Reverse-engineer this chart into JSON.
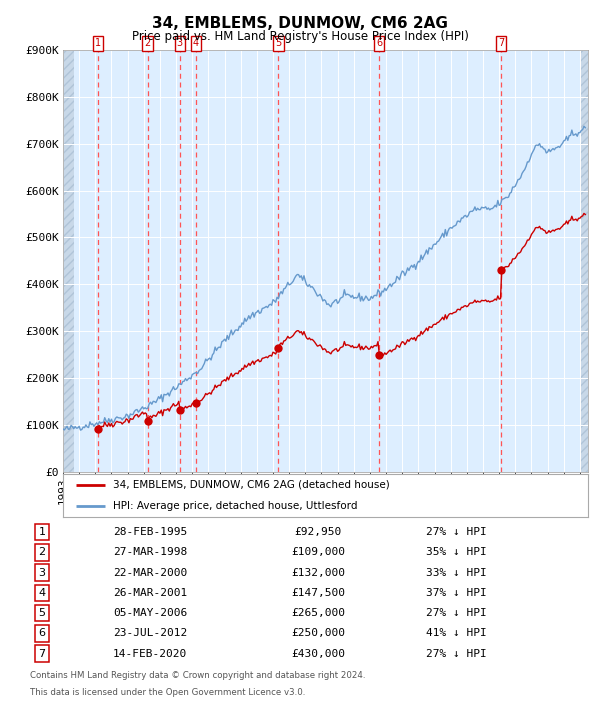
{
  "title": "34, EMBLEMS, DUNMOW, CM6 2AG",
  "subtitle": "Price paid vs. HM Land Registry's House Price Index (HPI)",
  "xlim_start": 1993.0,
  "xlim_end": 2025.5,
  "ylim_min": 0,
  "ylim_max": 900000,
  "yticks": [
    0,
    100000,
    200000,
    300000,
    400000,
    500000,
    600000,
    700000,
    800000,
    900000
  ],
  "ytick_labels": [
    "£0",
    "£100K",
    "£200K",
    "£300K",
    "£400K",
    "£500K",
    "£600K",
    "£700K",
    "£800K",
    "£900K"
  ],
  "transactions": [
    {
      "num": 1,
      "date_str": "28-FEB-1995",
      "date_x": 1995.16,
      "price": 92950,
      "pct": "27%"
    },
    {
      "num": 2,
      "date_str": "27-MAR-1998",
      "date_x": 1998.24,
      "price": 109000,
      "pct": "35%"
    },
    {
      "num": 3,
      "date_str": "22-MAR-2000",
      "date_x": 2000.23,
      "price": 132000,
      "pct": "33%"
    },
    {
      "num": 4,
      "date_str": "26-MAR-2001",
      "date_x": 2001.23,
      "price": 147500,
      "pct": "37%"
    },
    {
      "num": 5,
      "date_str": "05-MAY-2006",
      "date_x": 2006.34,
      "price": 265000,
      "pct": "27%"
    },
    {
      "num": 6,
      "date_str": "23-JUL-2012",
      "date_x": 2012.56,
      "price": 250000,
      "pct": "41%"
    },
    {
      "num": 7,
      "date_str": "14-FEB-2020",
      "date_x": 2020.12,
      "price": 430000,
      "pct": "27%"
    }
  ],
  "legend_property_label": "34, EMBLEMS, DUNMOW, CM6 2AG (detached house)",
  "legend_hpi_label": "HPI: Average price, detached house, Uttlesford",
  "property_line_color": "#cc0000",
  "hpi_line_color": "#6699cc",
  "vline_color": "#ff4444",
  "background_color": "#ffffff",
  "plot_bg_color": "#ddeeff",
  "footer_line1": "Contains HM Land Registry data © Crown copyright and database right 2024.",
  "footer_line2": "This data is licensed under the Open Government Licence v3.0.",
  "table_rows": [
    [
      1,
      "28-FEB-1995",
      "£92,950",
      "27% ↓ HPI"
    ],
    [
      2,
      "27-MAR-1998",
      "£109,000",
      "35% ↓ HPI"
    ],
    [
      3,
      "22-MAR-2000",
      "£132,000",
      "33% ↓ HPI"
    ],
    [
      4,
      "26-MAR-2001",
      "£147,500",
      "37% ↓ HPI"
    ],
    [
      5,
      "05-MAY-2006",
      "£265,000",
      "27% ↓ HPI"
    ],
    [
      6,
      "23-JUL-2012",
      "£250,000",
      "41% ↓ HPI"
    ],
    [
      7,
      "14-FEB-2020",
      "£430,000",
      "27% ↓ HPI"
    ]
  ]
}
